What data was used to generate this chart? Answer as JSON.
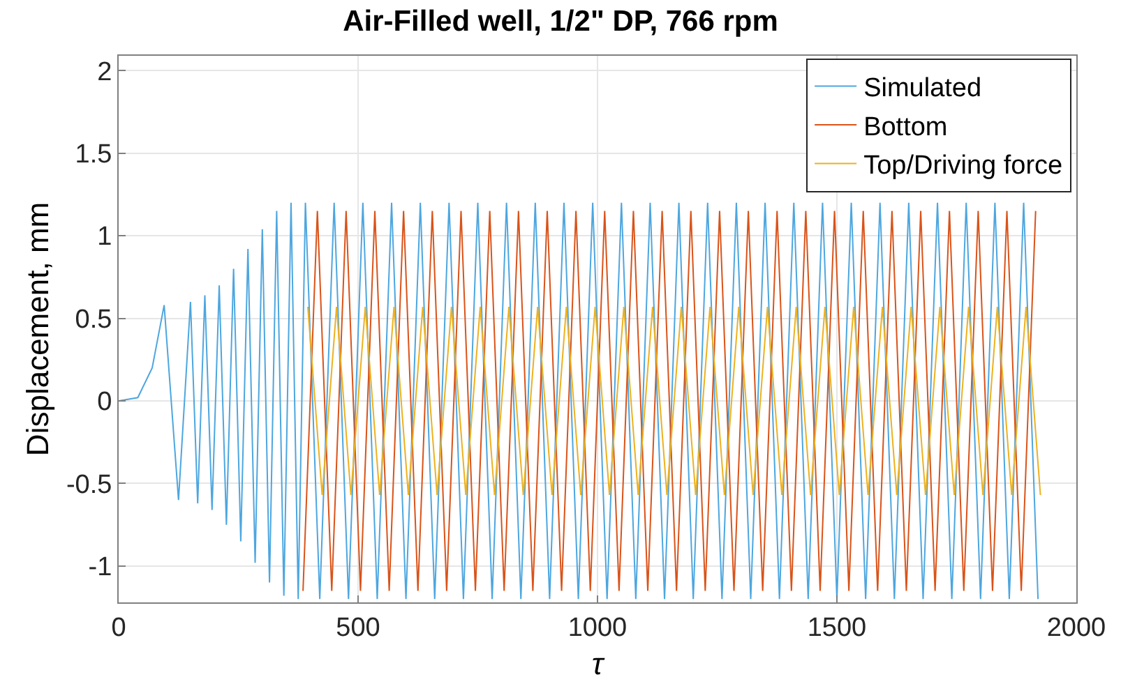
{
  "chart_data": {
    "type": "line",
    "title": "Air-Filled well, 1/2\" DP, 766 rpm",
    "xlabel": "τ",
    "ylabel": "Displacement, mm",
    "xlim": [
      0,
      2000
    ],
    "xticks": [
      0,
      500,
      1000,
      1500,
      2000
    ],
    "ylim": [
      -1.22,
      2.09
    ],
    "yticks": [
      -1,
      -0.5,
      0,
      0.5,
      1,
      1.5,
      2
    ],
    "grid": true,
    "legend": "top right",
    "series": [
      {
        "name": "Simulated",
        "color": "#4da6df",
        "x": [
          0,
          40,
          70,
          95,
          125,
          150,
          165,
          180,
          195,
          210,
          225,
          240,
          255,
          270,
          285,
          300,
          315,
          330,
          345,
          360,
          375,
          390,
          420,
          450,
          480,
          510,
          540,
          570,
          600,
          630,
          660,
          690,
          720,
          750,
          780,
          810,
          840,
          870,
          900,
          930,
          960,
          990,
          1020,
          1050,
          1080,
          1110,
          1140,
          1170,
          1200,
          1230,
          1260,
          1290,
          1320,
          1350,
          1380,
          1410,
          1440,
          1470,
          1500,
          1530,
          1560,
          1590,
          1620,
          1650,
          1680,
          1710,
          1740,
          1770,
          1800,
          1830,
          1860,
          1890,
          1920
        ],
        "values": [
          0,
          0.02,
          0.2,
          0.58,
          -0.6,
          0.6,
          -0.62,
          0.64,
          -0.66,
          0.7,
          -0.75,
          0.8,
          -0.85,
          0.92,
          -0.98,
          1.04,
          -1.1,
          1.15,
          -1.18,
          1.2,
          -1.2,
          1.2,
          -1.2,
          1.2,
          -1.2,
          1.2,
          -1.2,
          1.2,
          -1.2,
          1.2,
          -1.2,
          1.2,
          -1.2,
          1.2,
          -1.2,
          1.2,
          -1.2,
          1.2,
          -1.2,
          1.2,
          -1.2,
          1.2,
          -1.2,
          1.2,
          -1.2,
          1.2,
          -1.2,
          1.2,
          -1.2,
          1.2,
          -1.2,
          1.2,
          -1.2,
          1.2,
          -1.2,
          1.2,
          -1.2,
          1.2,
          -1.2,
          1.2,
          -1.2,
          1.2,
          -1.2,
          1.2,
          -1.2,
          1.2,
          -1.2,
          1.2,
          -1.2,
          1.2,
          -1.2,
          1.2,
          -1.2
        ]
      },
      {
        "name": "Bottom",
        "color": "#d95319",
        "x": [
          385,
          415,
          445,
          475,
          505,
          535,
          565,
          595,
          625,
          655,
          685,
          715,
          745,
          775,
          805,
          835,
          865,
          895,
          925,
          955,
          985,
          1015,
          1045,
          1075,
          1105,
          1135,
          1165,
          1195,
          1225,
          1255,
          1285,
          1315,
          1345,
          1375,
          1405,
          1435,
          1465,
          1495,
          1525,
          1555,
          1585,
          1615,
          1645,
          1675,
          1705,
          1735,
          1765,
          1795,
          1825,
          1855,
          1885,
          1915
        ],
        "values": [
          -1.15,
          1.15,
          -1.15,
          1.15,
          -1.15,
          1.15,
          -1.15,
          1.15,
          -1.15,
          1.15,
          -1.15,
          1.15,
          -1.15,
          1.15,
          -1.15,
          1.15,
          -1.15,
          1.15,
          -1.15,
          1.15,
          -1.15,
          1.15,
          -1.15,
          1.15,
          -1.15,
          1.15,
          -1.15,
          1.15,
          -1.15,
          1.15,
          -1.15,
          1.15,
          -1.15,
          1.15,
          -1.15,
          1.15,
          -1.15,
          1.15,
          -1.15,
          1.15,
          -1.15,
          1.15,
          -1.15,
          1.15,
          -1.15,
          1.15,
          -1.15,
          1.15,
          -1.15,
          1.15,
          -1.15,
          1.15
        ]
      },
      {
        "name": "Top/Driving force",
        "color": "#edb120",
        "x": [
          395,
          425,
          455,
          485,
          515,
          545,
          575,
          605,
          635,
          665,
          695,
          725,
          755,
          785,
          815,
          845,
          875,
          905,
          935,
          965,
          995,
          1025,
          1055,
          1085,
          1115,
          1145,
          1175,
          1205,
          1235,
          1265,
          1295,
          1325,
          1355,
          1385,
          1415,
          1445,
          1475,
          1505,
          1535,
          1565,
          1595,
          1625,
          1655,
          1685,
          1715,
          1745,
          1775,
          1805,
          1835,
          1865,
          1895,
          1925
        ],
        "values": [
          0.57,
          -0.57,
          0.57,
          -0.57,
          0.57,
          -0.57,
          0.57,
          -0.57,
          0.57,
          -0.57,
          0.57,
          -0.57,
          0.57,
          -0.57,
          0.57,
          -0.57,
          0.57,
          -0.57,
          0.57,
          -0.57,
          0.57,
          -0.57,
          0.57,
          -0.57,
          0.57,
          -0.57,
          0.57,
          -0.57,
          0.57,
          -0.57,
          0.57,
          -0.57,
          0.57,
          -0.57,
          0.57,
          -0.57,
          0.57,
          -0.57,
          0.57,
          -0.57,
          0.57,
          -0.57,
          0.57,
          -0.57,
          0.57,
          -0.57,
          0.57,
          -0.57,
          0.57,
          -0.57,
          0.57,
          -0.57
        ]
      }
    ]
  }
}
